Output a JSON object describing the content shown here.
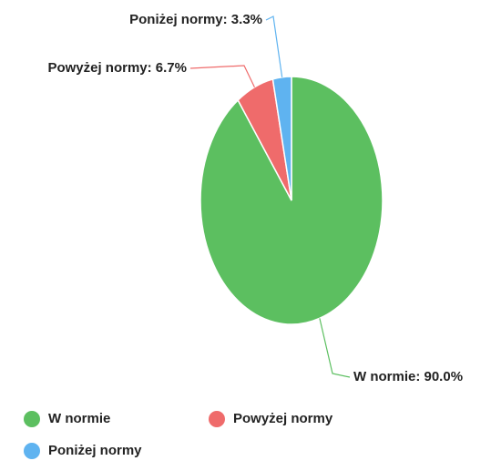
{
  "chart_data": {
    "type": "pie",
    "categories": [
      "W normie",
      "Powyżej normy",
      "Poniżej normy"
    ],
    "values": [
      90.0,
      6.7,
      3.3
    ],
    "value_labels": [
      "W normie: 90.0%",
      "Powyżej normy: 6.7%",
      "Poniżej normy: 3.3%"
    ],
    "colors": [
      "#5cbf60",
      "#ef6b6b",
      "#5fb3f0"
    ],
    "legend": "bottom"
  }
}
